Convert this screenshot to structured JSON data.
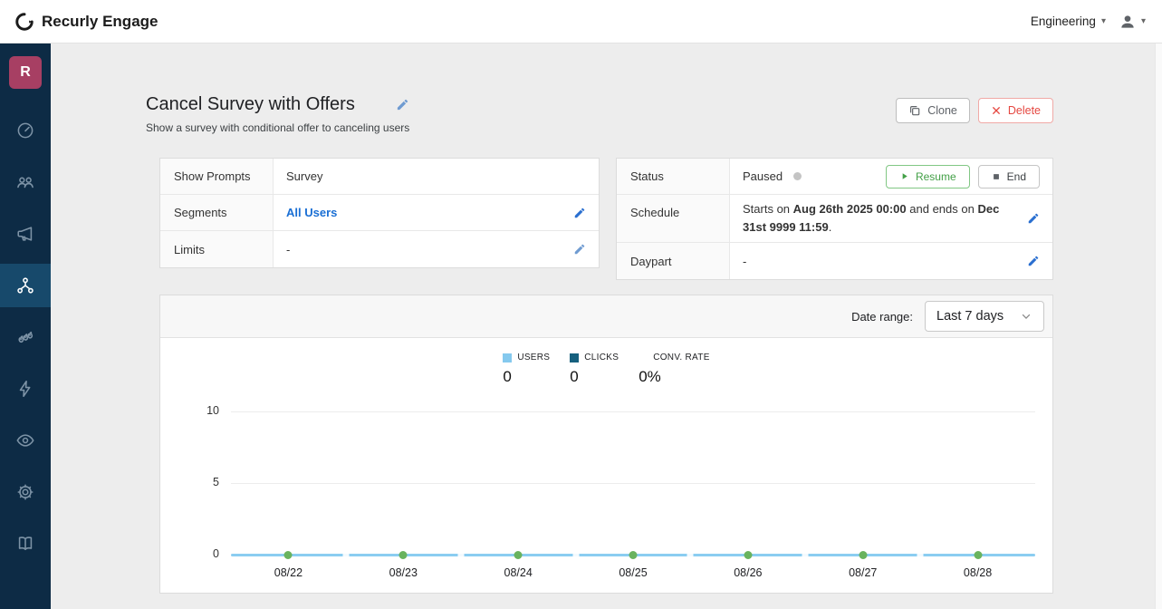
{
  "topbar": {
    "brand": "Recurly Engage",
    "org_selector": "Engineering"
  },
  "sidebar": {
    "avatar_initial": "R",
    "items": [
      {
        "icon": "gauge-icon",
        "active": false
      },
      {
        "icon": "users-icon",
        "active": false
      },
      {
        "icon": "megaphone-icon",
        "active": false
      },
      {
        "icon": "flow-icon",
        "active": true
      },
      {
        "icon": "flames-icon",
        "active": false
      },
      {
        "icon": "bolt-icon",
        "active": false
      },
      {
        "icon": "eye-icon",
        "active": false
      },
      {
        "icon": "gear-icon",
        "active": false
      },
      {
        "icon": "book-icon",
        "active": false
      }
    ]
  },
  "page": {
    "title": "Cancel Survey with Offers",
    "subtitle": "Show a survey with conditional offer to canceling users",
    "actions": {
      "clone": "Clone",
      "delete": "Delete"
    }
  },
  "details": {
    "show_prompts_label": "Show Prompts",
    "show_prompts_value": "Survey",
    "segments_label": "Segments",
    "segments_value": "All Users",
    "limits_label": "Limits",
    "limits_value": "-",
    "status_label": "Status",
    "status_value": "Paused",
    "resume_label": "Resume",
    "end_label": "End",
    "schedule_label": "Schedule",
    "schedule": {
      "prefix": "Starts on ",
      "start_bold": "Aug 26th 2025 00:00",
      "middle": " and ends on ",
      "end_bold": "Dec 31st 9999 11:59",
      "suffix": "."
    },
    "daypart_label": "Daypart",
    "daypart_value": "-"
  },
  "chart": {
    "date_range_label": "Date range:",
    "date_range_value": "Last 7 days",
    "legend": [
      {
        "label": "USERS",
        "value": "0",
        "color": "#85c9ee"
      },
      {
        "label": "CLICKS",
        "value": "0",
        "color": "#16607e"
      },
      {
        "label": "CONV. RATE",
        "value": "0%"
      }
    ]
  },
  "chart_data": {
    "type": "line",
    "title": "",
    "categories": [
      "08/22",
      "08/23",
      "08/24",
      "08/25",
      "08/26",
      "08/27",
      "08/28"
    ],
    "series": [
      {
        "name": "USERS",
        "values": [
          0,
          0,
          0,
          0,
          0,
          0,
          0
        ],
        "color": "#8bcdf1"
      },
      {
        "name": "CLICKS",
        "values": [
          0,
          0,
          0,
          0,
          0,
          0,
          0
        ],
        "color": "#16607e"
      }
    ],
    "yticks": [
      0,
      5,
      10
    ],
    "ylim": [
      0,
      10
    ],
    "marker_color": "#69b35e",
    "grid": true,
    "legend_position": "top-center"
  },
  "colors": {
    "sidebar_bg": "#0d2b45",
    "sidebar_active_bg": "#17496b",
    "avatar_bg": "#a73f63",
    "accent_blue": "#1a6fd4",
    "resume_green": "#43a047",
    "delete_red": "#e54740",
    "paused_dot": "#c4c4c4"
  }
}
